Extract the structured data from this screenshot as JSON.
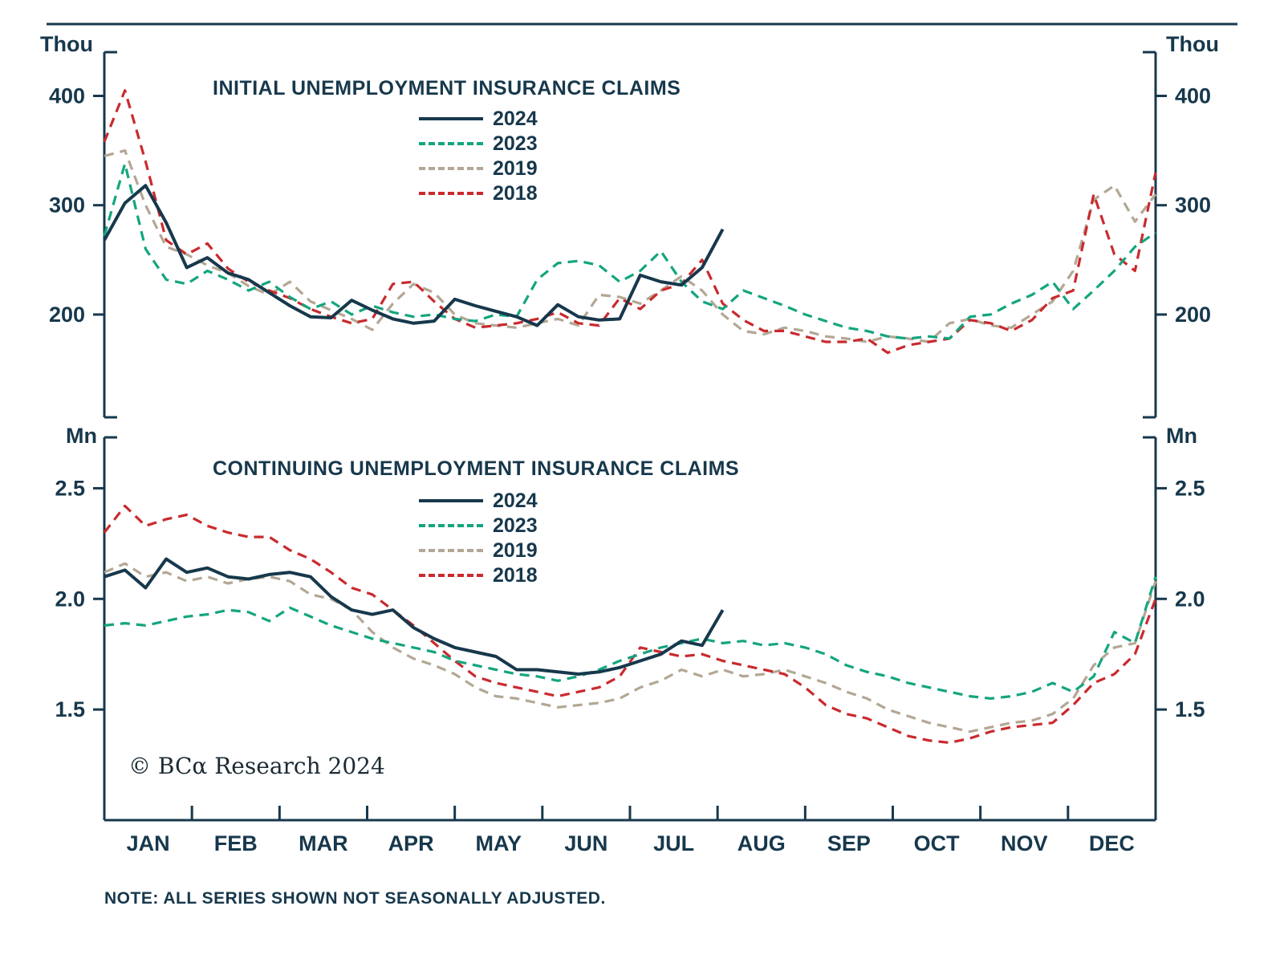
{
  "page": {
    "background": "#ffffff",
    "accent_color": "#17384c"
  },
  "months": [
    "JAN",
    "FEB",
    "MAR",
    "APR",
    "MAY",
    "JUN",
    "JUL",
    "AUG",
    "SEP",
    "OCT",
    "NOV",
    "DEC"
  ],
  "note": "NOTE: ALL SERIES SHOWN NOT SEASONALLY ADJUSTED.",
  "copyright": "© BCα Research 2024",
  "chart_data": [
    {
      "type": "line",
      "title": "INITIAL UNEMPLOYMENT INSURANCE CLAIMS",
      "unit": "Thou",
      "x_axis": "weekly, JAN to DEC",
      "grid": false,
      "legend_position": "top-center",
      "ylim": [
        106,
        440
      ],
      "yticks": [
        {
          "value": 200,
          "label": "200"
        },
        {
          "value": 300,
          "label": "300"
        },
        {
          "value": 400,
          "label": "400"
        }
      ],
      "series": [
        {
          "name": "2019",
          "color": "#b3a795",
          "style": "dashed",
          "values": [
            345,
            350,
            300,
            262,
            255,
            245,
            238,
            226,
            218,
            230,
            212,
            204,
            196,
            186,
            210,
            228,
            220,
            200,
            192,
            190,
            188,
            192,
            196,
            190,
            218,
            216,
            210,
            222,
            235,
            222,
            200,
            185,
            182,
            188,
            185,
            180,
            178,
            175,
            180,
            178,
            175,
            192,
            196,
            190,
            188,
            200,
            212,
            240,
            305,
            318,
            285,
            310
          ]
        },
        {
          "name": "2018",
          "color": "#c92a2e",
          "style": "dashed",
          "values": [
            358,
            405,
            340,
            268,
            255,
            265,
            242,
            230,
            222,
            215,
            205,
            198,
            192,
            196,
            228,
            230,
            212,
            196,
            188,
            190,
            192,
            196,
            202,
            192,
            190,
            215,
            205,
            222,
            228,
            250,
            210,
            195,
            185,
            185,
            180,
            175,
            175,
            178,
            165,
            172,
            175,
            178,
            195,
            192,
            185,
            195,
            215,
            222,
            310,
            255,
            240,
            330
          ]
        },
        {
          "name": "2023",
          "color": "#13a57e",
          "style": "dashed",
          "values": [
            272,
            338,
            260,
            232,
            228,
            240,
            232,
            222,
            230,
            216,
            205,
            212,
            200,
            208,
            202,
            198,
            200,
            196,
            194,
            200,
            198,
            232,
            247,
            249,
            245,
            230,
            240,
            258,
            230,
            212,
            205,
            222,
            215,
            208,
            200,
            194,
            188,
            185,
            180,
            178,
            180,
            178,
            198,
            200,
            210,
            218,
            230,
            205,
            222,
            240,
            262,
            275
          ]
        },
        {
          "name": "2024",
          "color": "#17384c",
          "style": "solid",
          "values": [
            268,
            302,
            318,
            284,
            243,
            252,
            238,
            232,
            220,
            208,
            198,
            197,
            213,
            204,
            196,
            192,
            194,
            214,
            208,
            203,
            198,
            190,
            209,
            198,
            195,
            196,
            236,
            230,
            227,
            243,
            278
          ]
        }
      ],
      "legend_order": [
        "2024",
        "2023",
        "2019",
        "2018"
      ]
    },
    {
      "type": "line",
      "title": "CONTINUING UNEMPLOYMENT INSURANCE CLAIMS",
      "unit": "Mn",
      "x_axis": "weekly, JAN to DEC",
      "grid": false,
      "legend_position": "top-center",
      "ylim": [
        1.0,
        2.73
      ],
      "yticks": [
        {
          "value": 1.5,
          "label": "1.5"
        },
        {
          "value": 2.0,
          "label": "2.0"
        },
        {
          "value": 2.5,
          "label": "2.5"
        }
      ],
      "series": [
        {
          "name": "2019",
          "color": "#b3a795",
          "style": "dashed",
          "values": [
            2.12,
            2.16,
            2.1,
            2.12,
            2.08,
            2.1,
            2.07,
            2.09,
            2.1,
            2.08,
            2.02,
            2.0,
            1.95,
            1.85,
            1.78,
            1.73,
            1.7,
            1.66,
            1.6,
            1.56,
            1.55,
            1.53,
            1.51,
            1.52,
            1.53,
            1.55,
            1.6,
            1.63,
            1.68,
            1.65,
            1.68,
            1.65,
            1.66,
            1.68,
            1.65,
            1.62,
            1.58,
            1.55,
            1.5,
            1.47,
            1.44,
            1.42,
            1.4,
            1.42,
            1.44,
            1.45,
            1.48,
            1.55,
            1.7,
            1.78,
            1.8,
            2.08
          ]
        },
        {
          "name": "2018",
          "color": "#c92a2e",
          "style": "dashed",
          "values": [
            2.3,
            2.42,
            2.33,
            2.36,
            2.38,
            2.33,
            2.3,
            2.28,
            2.28,
            2.22,
            2.18,
            2.12,
            2.05,
            2.02,
            1.95,
            1.88,
            1.8,
            1.72,
            1.65,
            1.62,
            1.6,
            1.58,
            1.56,
            1.58,
            1.6,
            1.65,
            1.78,
            1.76,
            1.74,
            1.75,
            1.72,
            1.7,
            1.68,
            1.66,
            1.6,
            1.52,
            1.48,
            1.46,
            1.42,
            1.38,
            1.36,
            1.35,
            1.37,
            1.4,
            1.42,
            1.43,
            1.44,
            1.52,
            1.62,
            1.66,
            1.75,
            2.0
          ]
        },
        {
          "name": "2023",
          "color": "#13a57e",
          "style": "dashed",
          "values": [
            1.88,
            1.89,
            1.88,
            1.9,
            1.92,
            1.93,
            1.95,
            1.94,
            1.9,
            1.96,
            1.92,
            1.88,
            1.85,
            1.82,
            1.8,
            1.78,
            1.76,
            1.72,
            1.7,
            1.68,
            1.66,
            1.65,
            1.63,
            1.65,
            1.68,
            1.72,
            1.75,
            1.78,
            1.8,
            1.82,
            1.8,
            1.81,
            1.79,
            1.8,
            1.78,
            1.75,
            1.7,
            1.67,
            1.65,
            1.62,
            1.6,
            1.58,
            1.56,
            1.55,
            1.56,
            1.58,
            1.62,
            1.58,
            1.65,
            1.85,
            1.8,
            2.1
          ]
        },
        {
          "name": "2024",
          "color": "#17384c",
          "style": "solid",
          "values": [
            2.1,
            2.13,
            2.05,
            2.18,
            2.12,
            2.14,
            2.1,
            2.09,
            2.11,
            2.12,
            2.1,
            2.01,
            1.95,
            1.93,
            1.95,
            1.87,
            1.82,
            1.78,
            1.76,
            1.74,
            1.68,
            1.68,
            1.67,
            1.66,
            1.67,
            1.69,
            1.72,
            1.75,
            1.81,
            1.79,
            1.95
          ]
        }
      ],
      "legend_order": [
        "2024",
        "2023",
        "2019",
        "2018"
      ]
    }
  ]
}
